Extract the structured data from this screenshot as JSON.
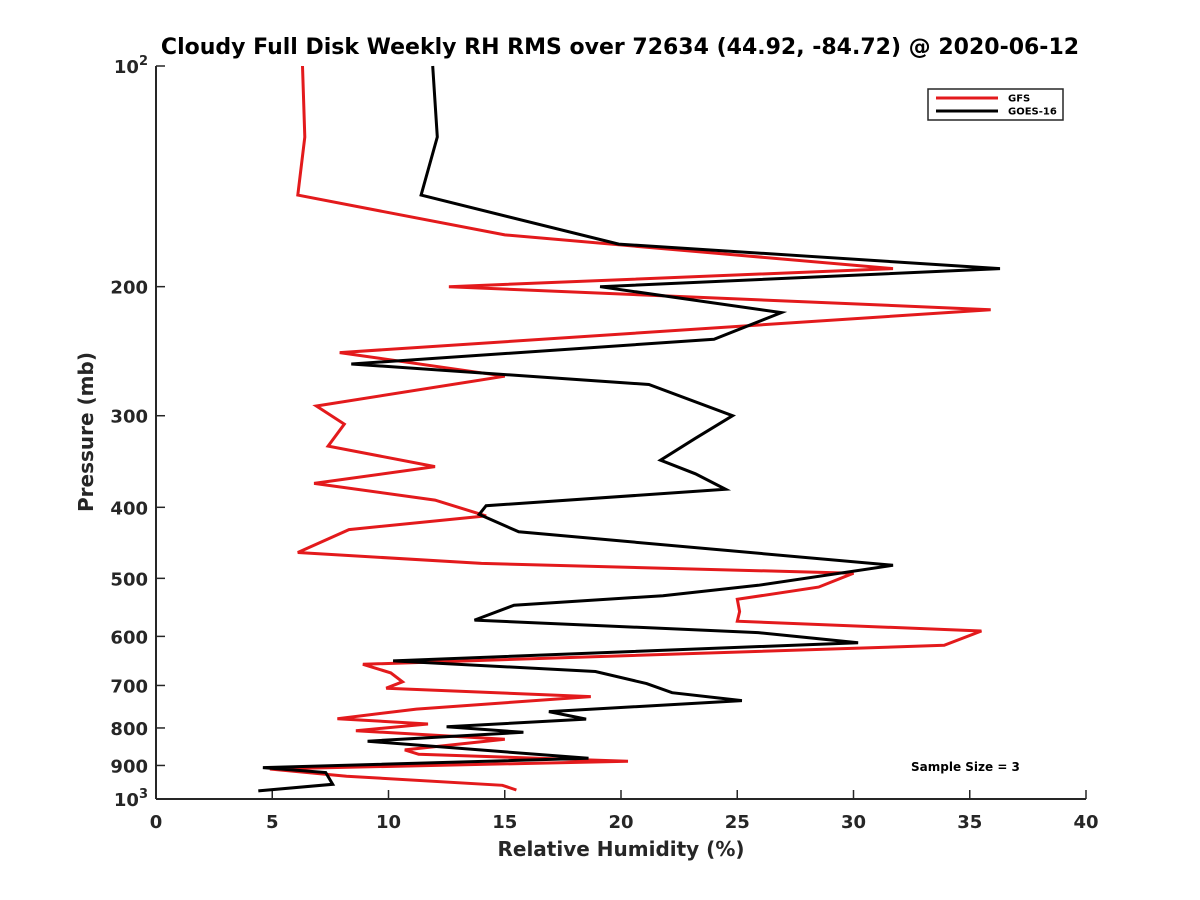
{
  "chart_data": {
    "type": "line",
    "title": "Cloudy Full Disk Weekly RH RMS over 72634 (44.92, -84.72) @ 2020-06-12",
    "xlabel": "Relative Humidity (%)",
    "ylabel": "Pressure (mb)",
    "xlim": [
      0,
      40
    ],
    "ylim": [
      100,
      1000
    ],
    "yscale": "log",
    "y_reversed": true,
    "xticks": [
      "0",
      "5",
      "10",
      "15",
      "20",
      "25",
      "30",
      "35",
      "40"
    ],
    "yticks": [
      {
        "value": 100,
        "label": "10",
        "sup": "2"
      },
      {
        "value": 200,
        "label": "200",
        "sup": ""
      },
      {
        "value": 300,
        "label": "300",
        "sup": ""
      },
      {
        "value": 400,
        "label": "400",
        "sup": ""
      },
      {
        "value": 500,
        "label": "500",
        "sup": ""
      },
      {
        "value": 600,
        "label": "600",
        "sup": ""
      },
      {
        "value": 700,
        "label": "700",
        "sup": ""
      },
      {
        "value": 800,
        "label": "800",
        "sup": ""
      },
      {
        "value": 900,
        "label": "900",
        "sup": ""
      },
      {
        "value": 1000,
        "label": "10",
        "sup": "3"
      }
    ],
    "legend_position": "top-right",
    "grid": false,
    "annotation": "Sample Size = 3",
    "series": [
      {
        "name": "GFS",
        "color": "#e31a1c",
        "points": [
          [
            6.3,
            100
          ],
          [
            6.4,
            125
          ],
          [
            6.1,
            150
          ],
          [
            15,
            170
          ],
          [
            31.7,
            189
          ],
          [
            12.6,
            200
          ],
          [
            35.9,
            215
          ],
          [
            7.9,
            246
          ],
          [
            15,
            265
          ],
          [
            6.9,
            291
          ],
          [
            8.1,
            308
          ],
          [
            7.4,
            330
          ],
          [
            12,
            352
          ],
          [
            6.8,
            371
          ],
          [
            12,
            391
          ],
          [
            14.2,
            411
          ],
          [
            8.3,
            429
          ],
          [
            6.1,
            461
          ],
          [
            14,
            477
          ],
          [
            30,
            492
          ],
          [
            28.5,
            514
          ],
          [
            25,
            534
          ],
          [
            25.1,
            555
          ],
          [
            25,
            572
          ],
          [
            35.5,
            590
          ],
          [
            33.9,
            617
          ],
          [
            8.9,
            655
          ],
          [
            10.1,
            673
          ],
          [
            10.6,
            692
          ],
          [
            9.9,
            706
          ],
          [
            18.7,
            725
          ],
          [
            11.2,
            754
          ],
          [
            7.8,
            777
          ],
          [
            11.7,
            790
          ],
          [
            8.6,
            807
          ],
          [
            15,
            829
          ],
          [
            10.7,
            857
          ],
          [
            11.3,
            869
          ],
          [
            20.3,
            888
          ],
          [
            4.9,
            910
          ],
          [
            8.2,
            931
          ],
          [
            14.9,
            958
          ],
          [
            15.5,
            972
          ]
        ]
      },
      {
        "name": "GOES-16",
        "color": "#000000",
        "points": [
          [
            11.9,
            100
          ],
          [
            12.1,
            125
          ],
          [
            11.4,
            150
          ],
          [
            19.9,
            175
          ],
          [
            36.3,
            189
          ],
          [
            19.1,
            200
          ],
          [
            26.9,
            217
          ],
          [
            24,
            236
          ],
          [
            8.4,
            255
          ],
          [
            21.2,
            272
          ],
          [
            24.8,
            300
          ],
          [
            23.2,
            322
          ],
          [
            21.7,
            345
          ],
          [
            23.2,
            360
          ],
          [
            24.5,
            378
          ],
          [
            14.2,
            398
          ],
          [
            13.9,
            409
          ],
          [
            15.6,
            432
          ],
          [
            31.7,
            480
          ],
          [
            25.9,
            511
          ],
          [
            21.8,
            528
          ],
          [
            15.4,
            544
          ],
          [
            13.7,
            570
          ],
          [
            25.9,
            593
          ],
          [
            30.2,
            612
          ],
          [
            10.2,
            648
          ],
          [
            18.9,
            670
          ],
          [
            21.1,
            696
          ],
          [
            22.2,
            716
          ],
          [
            25.2,
            734
          ],
          [
            16.9,
            760
          ],
          [
            18.5,
            778
          ],
          [
            12.5,
            797
          ],
          [
            15.8,
            811
          ],
          [
            9.1,
            834
          ],
          [
            18.6,
            880
          ],
          [
            4.6,
            906
          ],
          [
            7.3,
            920
          ],
          [
            7.6,
            955
          ],
          [
            4.4,
            975
          ]
        ]
      }
    ]
  }
}
